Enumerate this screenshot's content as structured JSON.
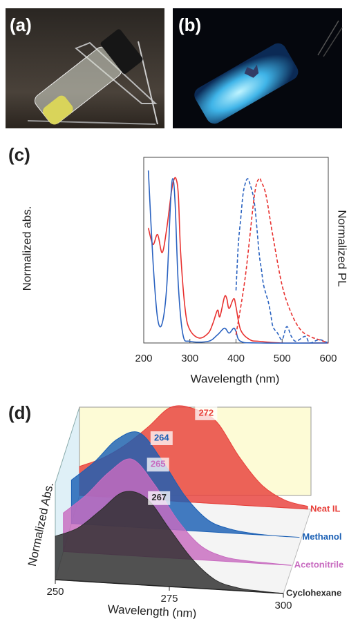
{
  "photos": [
    {
      "label": "(a)"
    },
    {
      "label": "(b)"
    }
  ],
  "chart_data": [
    {
      "type": "line",
      "label": "(c)",
      "xlabel": "Wavelength (nm)",
      "ylabel": "Normalized abs.",
      "y2label": "Normalized PL",
      "xlim": [
        200,
        600
      ],
      "xticks": [
        200,
        300,
        400,
        500,
        600
      ],
      "ylim": [
        0,
        1.13
      ],
      "series": [
        {
          "color": "#e8312f",
          "dashed": false,
          "x": [
            210,
            220,
            230,
            240,
            250,
            260,
            265,
            270,
            275,
            280,
            290,
            300,
            320,
            340,
            350,
            360,
            365,
            375,
            380,
            385,
            395,
            400,
            410,
            430,
            450,
            500,
            600
          ],
          "values": [
            0.7,
            0.6,
            0.66,
            0.55,
            0.7,
            0.92,
            0.99,
            1.0,
            0.9,
            0.55,
            0.2,
            0.08,
            0.03,
            0.06,
            0.12,
            0.2,
            0.16,
            0.28,
            0.27,
            0.21,
            0.27,
            0.22,
            0.08,
            0.02,
            0.01,
            0,
            0
          ]
        },
        {
          "color": "#2a62c0",
          "dashed": false,
          "x": [
            210,
            220,
            230,
            240,
            250,
            258,
            263,
            268,
            275,
            285,
            300,
            340,
            360,
            375,
            385,
            395,
            400,
            410,
            450,
            600
          ],
          "values": [
            1.05,
            0.5,
            0.15,
            0.12,
            0.35,
            0.85,
            1.0,
            0.85,
            0.35,
            0.05,
            0.01,
            0.01,
            0.05,
            0.09,
            0.06,
            0.09,
            0.07,
            0.01,
            0,
            0
          ]
        },
        {
          "color": "#2a62c0",
          "dashed": true,
          "x": [
            400,
            405,
            410,
            415,
            420,
            425,
            430,
            440,
            450,
            455,
            460,
            470,
            475,
            480,
            490,
            500,
            510,
            520,
            530,
            550,
            560,
            580,
            600
          ],
          "values": [
            0.32,
            0.6,
            0.75,
            0.9,
            0.97,
            1.0,
            0.97,
            0.85,
            0.55,
            0.45,
            0.35,
            0.25,
            0.18,
            0.1,
            0.06,
            0.02,
            0.1,
            0.04,
            0.01,
            0.04,
            0,
            0.02,
            0
          ]
        },
        {
          "color": "#e8312f",
          "dashed": true,
          "x": [
            400,
            420,
            440,
            450,
            455,
            465,
            480,
            500,
            520,
            540,
            560,
            580,
            600
          ],
          "values": [
            0.05,
            0.4,
            0.9,
            1.0,
            0.98,
            0.9,
            0.65,
            0.35,
            0.18,
            0.08,
            0.04,
            0.02,
            0
          ]
        }
      ]
    },
    {
      "type": "waterfall",
      "label": "(d)",
      "xlabel": "Wavelength (nm)",
      "ylabel": "Normalized Abs.",
      "xlim": [
        250,
        300
      ],
      "xticks": [
        250,
        275,
        300
      ],
      "x": [
        250,
        255,
        260,
        265,
        270,
        275,
        280,
        285,
        290,
        295,
        300
      ],
      "series": [
        {
          "name": "Neat IL",
          "color": "#e8403a",
          "peak": 272,
          "values": [
            0.3,
            0.4,
            0.55,
            0.75,
            0.97,
            0.97,
            0.85,
            0.5,
            0.22,
            0.08,
            0.03
          ]
        },
        {
          "name": "Methanol",
          "color": "#1a5fb4",
          "peak": 264,
          "values": [
            0.45,
            0.65,
            0.9,
            0.98,
            0.7,
            0.35,
            0.12,
            0.04,
            0.01,
            0,
            0
          ]
        },
        {
          "name": "Acetonitrile",
          "color": "#c86bc0",
          "peak": 265,
          "values": [
            0.4,
            0.6,
            0.85,
            1.0,
            0.75,
            0.4,
            0.15,
            0.05,
            0.02,
            0.01,
            0
          ]
        },
        {
          "name": "Cyclohexane",
          "color": "#2d2d2d",
          "peak": 267,
          "values": [
            0.45,
            0.55,
            0.75,
            0.95,
            0.9,
            0.6,
            0.3,
            0.1,
            0.03,
            0.01,
            0
          ]
        }
      ]
    }
  ]
}
